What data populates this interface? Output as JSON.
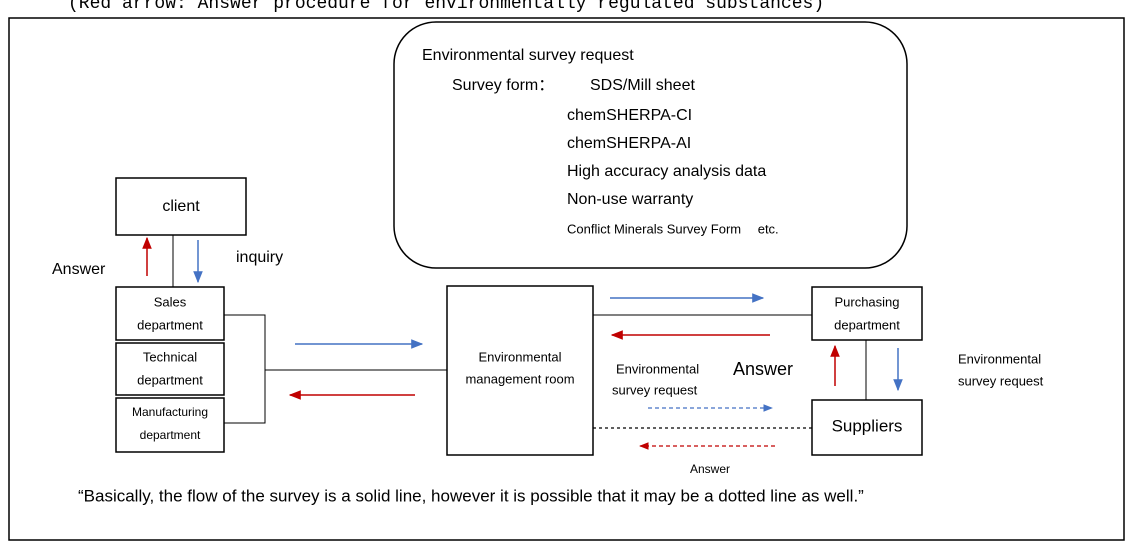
{
  "header": {
    "title": "(Red arrow: Answer procedure for environmentally regulated substances)"
  },
  "survey_box": {
    "title": "Environmental survey request",
    "form_label": "Survey form：",
    "forms": [
      "SDS/Mill sheet",
      "chemSHERPA-CI",
      "chemSHERPA-AI",
      "High accuracy analysis data",
      "Non-use warranty",
      "Conflict Minerals Survey Form　 etc."
    ]
  },
  "nodes": {
    "client": "client",
    "sales": [
      "Sales",
      "department"
    ],
    "technical": [
      "Technical",
      "department"
    ],
    "manufacturing": [
      "Manufacturing",
      "department"
    ],
    "env_room": [
      "Environmental",
      "management room"
    ],
    "purchasing": [
      "Purchasing",
      "department"
    ],
    "suppliers": "Suppliers"
  },
  "labels": {
    "client_answer": "Answer",
    "client_inquiry": "inquiry",
    "supplier_answer": "Answer",
    "supplier_request": [
      "Environmental",
      "survey request"
    ],
    "dotted_request": [
      "Environmental",
      "survey request"
    ],
    "dotted_answer": "Answer"
  },
  "note": "“Basically, the flow of the survey is a solid line, however it is possible that it may be a dotted line as well.”"
}
